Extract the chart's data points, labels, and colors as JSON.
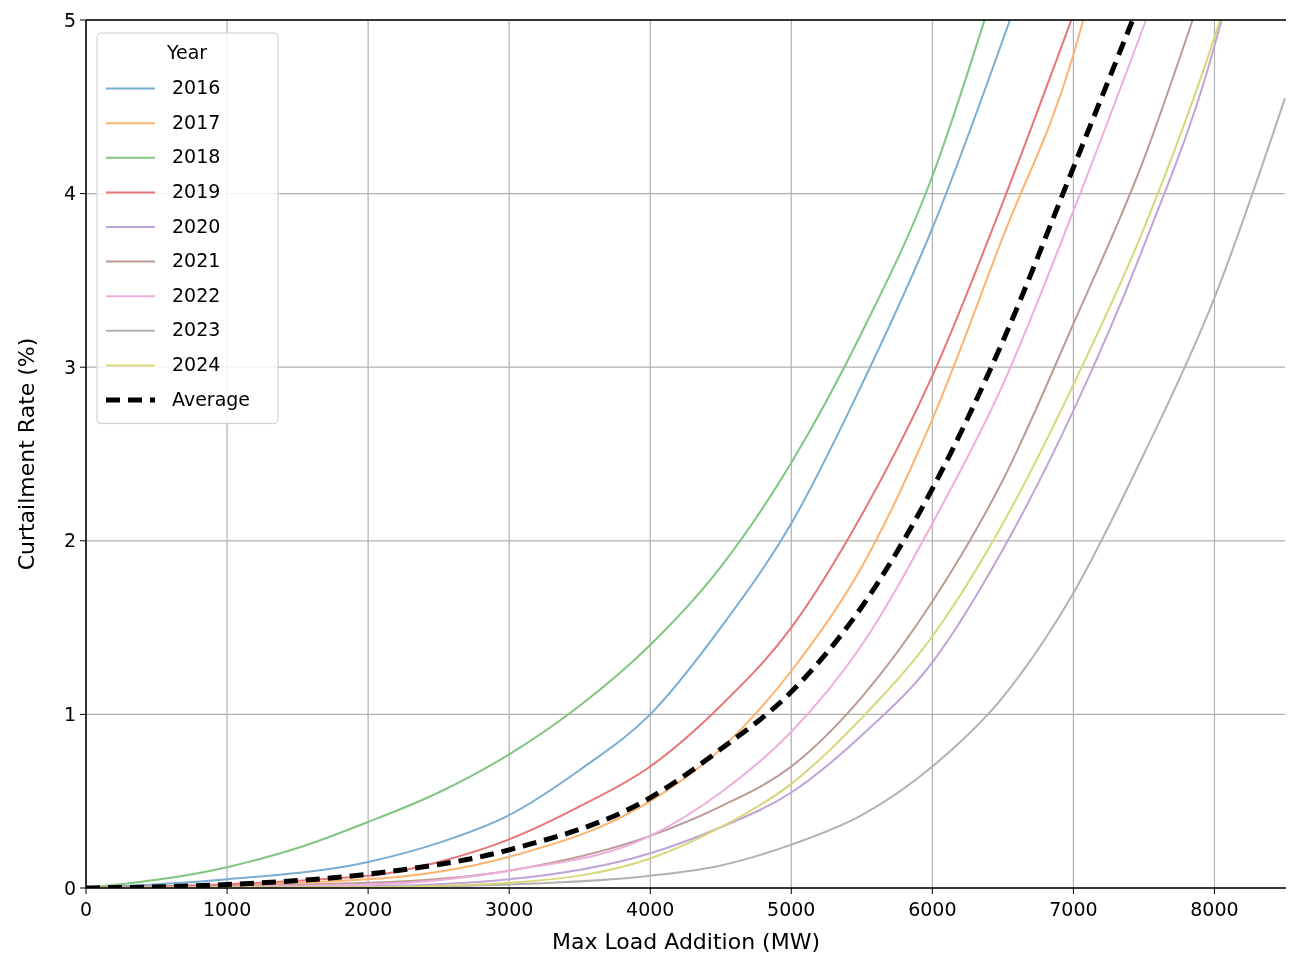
{
  "chart_data": {
    "type": "line",
    "xlabel": "Max Load Addition (MW)",
    "ylabel": "Curtailment Rate (%)",
    "legend_title": "Year",
    "legend": "top left",
    "grid": true,
    "marker": "none",
    "xlim": [
      0,
      8500
    ],
    "ylim": [
      0,
      5
    ],
    "xticks": [
      0,
      1000,
      2000,
      3000,
      4000,
      5000,
      6000,
      7000,
      8000
    ],
    "yticks": [
      0,
      1,
      2,
      3,
      4,
      5
    ],
    "series": [
      {
        "name": "2016",
        "color": "#79add2",
        "line_style": "solid",
        "x": [
          0,
          1000,
          2000,
          2500,
          3000,
          3500,
          4000,
          4500,
          5000,
          5500,
          6000,
          6550
        ],
        "values": [
          0,
          0.05,
          0.15,
          0.26,
          0.42,
          0.68,
          1.0,
          1.5,
          2.1,
          2.9,
          3.8,
          5
        ]
      },
      {
        "name": "2017",
        "color": "#ffb26e",
        "line_style": "solid",
        "x": [
          0,
          2000,
          3000,
          4000,
          4500,
          5000,
          5500,
          6000,
          6500,
          7000,
          7070
        ],
        "values": [
          0,
          0.05,
          0.18,
          0.5,
          0.8,
          1.25,
          1.85,
          2.7,
          3.75,
          4.8,
          5
        ]
      },
      {
        "name": "2018",
        "color": "#80c680",
        "line_style": "solid",
        "x": [
          0,
          1000,
          1500,
          2000,
          2500,
          3000,
          3500,
          4000,
          4500,
          5000,
          5500,
          6000,
          6370
        ],
        "values": [
          0,
          0.12,
          0.23,
          0.38,
          0.55,
          0.77,
          1.05,
          1.4,
          1.85,
          2.45,
          3.2,
          4.1,
          5
        ]
      },
      {
        "name": "2019",
        "color": "#e67576",
        "line_style": "solid",
        "x": [
          0,
          2000,
          2500,
          3000,
          3500,
          4000,
          4500,
          5000,
          5500,
          6000,
          6500,
          6985
        ],
        "values": [
          0,
          0.07,
          0.15,
          0.28,
          0.47,
          0.7,
          1.05,
          1.5,
          2.15,
          2.95,
          3.95,
          5
        ]
      },
      {
        "name": "2020",
        "color": "#bfa4d8",
        "line_style": "solid",
        "x": [
          0,
          2000,
          3000,
          4000,
          4500,
          5000,
          5500,
          6000,
          6500,
          7000,
          7500,
          8000,
          8050
        ],
        "values": [
          0,
          0.01,
          0.05,
          0.2,
          0.35,
          0.55,
          0.88,
          1.3,
          1.95,
          2.75,
          3.7,
          4.85,
          5
        ]
      },
      {
        "name": "2021",
        "color": "#ba9a93",
        "line_style": "solid",
        "x": [
          0,
          2000,
          3000,
          4000,
          4500,
          5000,
          5500,
          6000,
          6500,
          7000,
          7500,
          7845
        ],
        "values": [
          0,
          0.03,
          0.1,
          0.3,
          0.47,
          0.7,
          1.1,
          1.65,
          2.35,
          3.25,
          4.2,
          5
        ]
      },
      {
        "name": "2022",
        "color": "#eeadda",
        "line_style": "solid",
        "x": [
          0,
          2000,
          3000,
          4000,
          4500,
          5000,
          5500,
          6000,
          6500,
          7000,
          7515
        ],
        "values": [
          0,
          0.02,
          0.1,
          0.3,
          0.55,
          0.9,
          1.4,
          2.1,
          2.9,
          3.9,
          5
        ]
      },
      {
        "name": "2023",
        "color": "#b2b2b2",
        "line_style": "solid",
        "x": [
          0,
          2000,
          3000,
          4000,
          4500,
          5000,
          5500,
          6000,
          6500,
          7000,
          7500,
          8000,
          8500
        ],
        "values": [
          0,
          0.005,
          0.02,
          0.07,
          0.13,
          0.25,
          0.42,
          0.7,
          1.1,
          1.7,
          2.5,
          3.4,
          4.55
        ]
      },
      {
        "name": "2024",
        "color": "#d7d77a",
        "line_style": "solid",
        "x": [
          0,
          2000,
          3000,
          4000,
          4500,
          5000,
          5500,
          6000,
          6500,
          7000,
          7500,
          8000,
          8040
        ],
        "values": [
          0,
          0.005,
          0.03,
          0.17,
          0.35,
          0.6,
          0.98,
          1.45,
          2.1,
          2.9,
          3.8,
          4.9,
          5
        ]
      },
      {
        "name": "Average",
        "color": "#000000",
        "line_style": "dashed",
        "x": [
          0,
          1000,
          2000,
          3000,
          4000,
          4500,
          5000,
          5500,
          6000,
          6500,
          7000,
          7420
        ],
        "values": [
          0,
          0.02,
          0.08,
          0.22,
          0.52,
          0.8,
          1.13,
          1.62,
          2.3,
          3.15,
          4.15,
          5
        ]
      }
    ]
  }
}
